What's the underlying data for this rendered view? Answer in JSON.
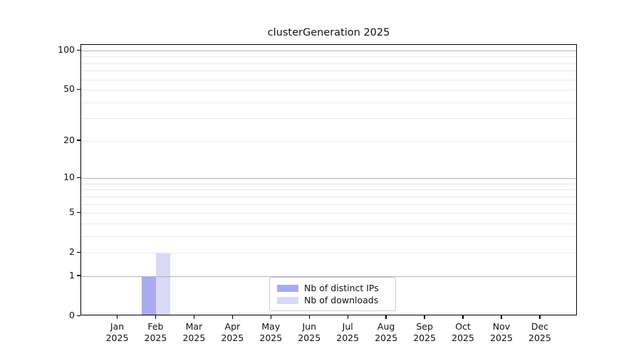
{
  "figure": {
    "background": "#ffffff"
  },
  "chart_data": {
    "type": "bar",
    "title": "clusterGeneration 2025",
    "year": "2025",
    "categories": [
      "Jan 2025",
      "Feb 2025",
      "Mar 2025",
      "Apr 2025",
      "May 2025",
      "Jun 2025",
      "Jul 2025",
      "Aug 2025",
      "Sep 2025",
      "Oct 2025",
      "Nov 2025",
      "Dec 2025"
    ],
    "series": [
      {
        "name": "Nb of distinct IPs",
        "color": "#aaaaee",
        "values": [
          0,
          1,
          0,
          0,
          0,
          0,
          0,
          0,
          0,
          0,
          0,
          0
        ]
      },
      {
        "name": "Nb of downloads",
        "color": "#d9d9f7",
        "values": [
          0,
          2,
          0,
          0,
          0,
          0,
          0,
          0,
          0,
          0,
          0,
          0
        ]
      }
    ],
    "xlabel": "",
    "ylabel": "",
    "y_scale": "log1p",
    "ylim": [
      0,
      110
    ],
    "y_ticks": [
      0,
      1,
      2,
      5,
      10,
      20,
      50,
      100
    ],
    "y_major_gridlines": [
      1,
      10,
      100
    ],
    "y_minor_gridlines": [
      3,
      4,
      6,
      7,
      8,
      9,
      30,
      40,
      60,
      70,
      80,
      90
    ],
    "grid": true,
    "legend_position": "lower center",
    "colors": {
      "major_grid": "#b5b5b5",
      "minor_grid": "#e8e8e8",
      "axis": "#000000",
      "text": "#111111"
    }
  }
}
